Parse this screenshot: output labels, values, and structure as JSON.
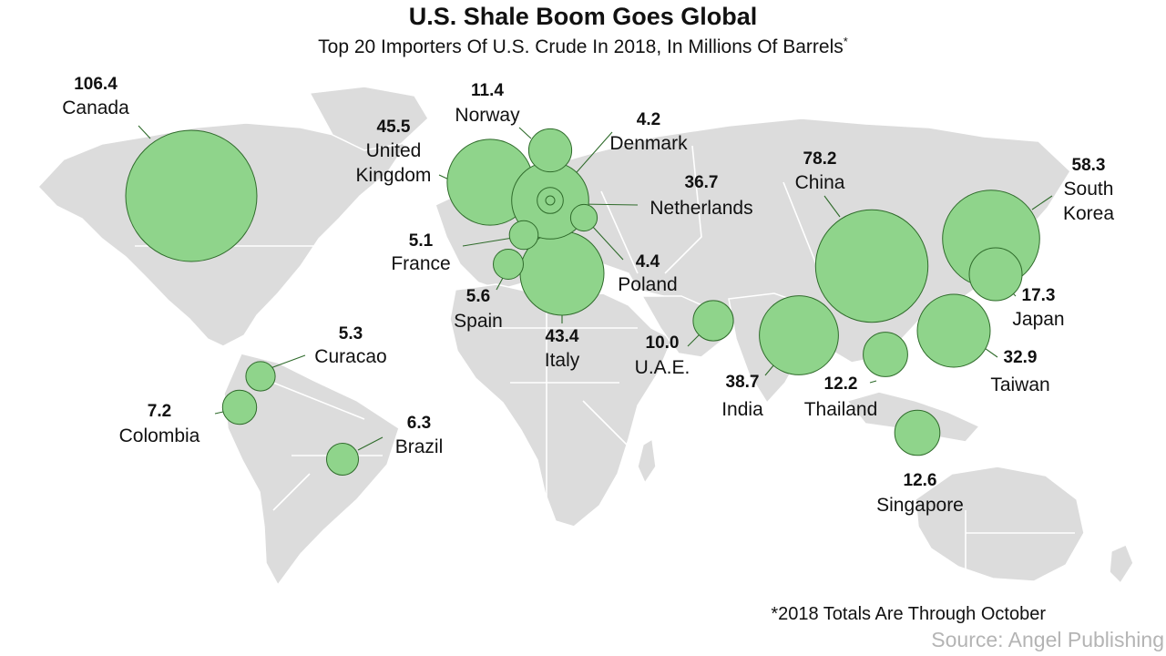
{
  "title": "U.S. Shale Boom Goes Global",
  "subtitle": "Top 20 Importers Of U.S. Crude In 2018, In Millions Of Barrels",
  "subtitle_mark": "*",
  "footnote": "*2018 Totals Are Through October",
  "source": "Source: Angel Publishing",
  "colors": {
    "bubble": "#8fd48b",
    "bubble_stroke": "#2f6b2b",
    "land": "#dcdcdc",
    "background": "#ffffff",
    "source_text": "#b4b4b4"
  },
  "chart_data": {
    "type": "bubble-map",
    "units": "Millions Of Barrels",
    "points": [
      {
        "country": "Canada",
        "value": 106.4
      },
      {
        "country": "China",
        "value": 78.2
      },
      {
        "country": "South Korea",
        "value": 58.3
      },
      {
        "country": "United Kingdom",
        "value": 45.5
      },
      {
        "country": "Italy",
        "value": 43.4
      },
      {
        "country": "India",
        "value": 38.7
      },
      {
        "country": "Netherlands",
        "value": 36.7
      },
      {
        "country": "Taiwan",
        "value": 32.9
      },
      {
        "country": "Japan",
        "value": 17.3
      },
      {
        "country": "Singapore",
        "value": 12.6
      },
      {
        "country": "Thailand",
        "value": 12.2
      },
      {
        "country": "Norway",
        "value": 11.4
      },
      {
        "country": "U.A.E.",
        "value": 10.0
      },
      {
        "country": "Colombia",
        "value": 7.2
      },
      {
        "country": "Brazil",
        "value": 6.3
      },
      {
        "country": "Spain",
        "value": 5.6
      },
      {
        "country": "Curacao",
        "value": 5.3
      },
      {
        "country": "France",
        "value": 5.1
      },
      {
        "country": "Poland",
        "value": 4.4
      },
      {
        "country": "Denmark",
        "value": 4.2
      }
    ]
  }
}
